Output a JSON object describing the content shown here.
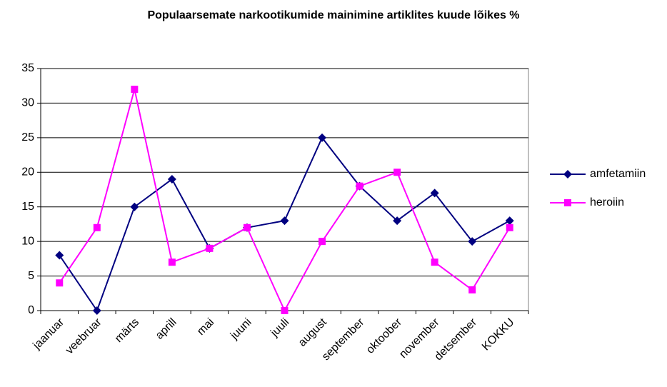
{
  "chart_data": {
    "type": "line",
    "title": "Populaarsemate narkootikumide mainimine artiklites kuude lõikes %",
    "categories": [
      "jaanuar",
      "veebruar",
      "märts",
      "aprill",
      "mai",
      "juuni",
      "juuli",
      "august",
      "september",
      "oktoober",
      "november",
      "detsember",
      "KOKKU"
    ],
    "series": [
      {
        "name": "amfetamiin",
        "color": "#000080",
        "marker": "diamond",
        "values": [
          8,
          0,
          15,
          19,
          9,
          12,
          13,
          25,
          18,
          13,
          17,
          10,
          13
        ]
      },
      {
        "name": "heroiin",
        "color": "#ff00ff",
        "marker": "square",
        "values": [
          4,
          12,
          32,
          7,
          9,
          12,
          0,
          10,
          18,
          20,
          7,
          3,
          12
        ]
      }
    ],
    "ylim": [
      0,
      35
    ],
    "yticks": [
      0,
      5,
      10,
      15,
      20,
      25,
      30,
      35
    ],
    "grid": true,
    "legend": "right"
  }
}
